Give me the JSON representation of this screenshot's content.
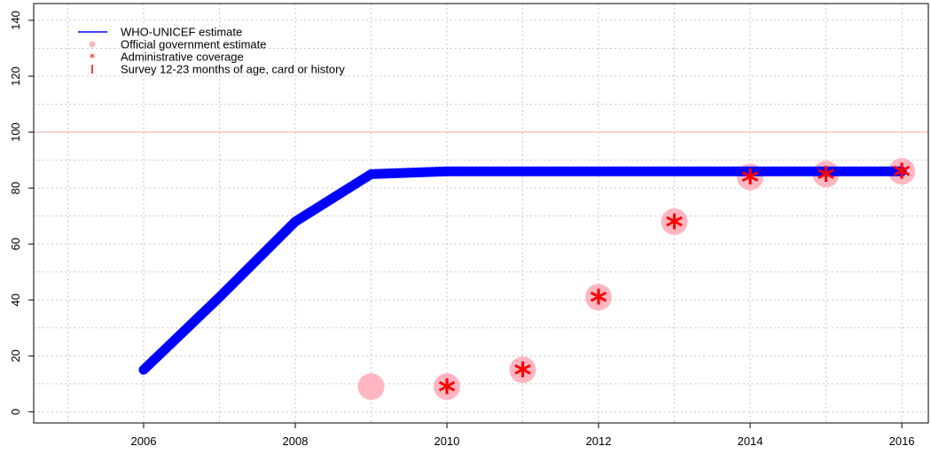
{
  "chart_data": {
    "type": "line",
    "title": "",
    "xlabel": "",
    "ylabel": "",
    "xlim": [
      2004.55,
      2016.35
    ],
    "ylim": [
      -4,
      146
    ],
    "x_ticks": [
      2006,
      2008,
      2010,
      2012,
      2014,
      2016
    ],
    "x_tick_labels": [
      "2006",
      "2008",
      "2010",
      "2012",
      "2014",
      "2016"
    ],
    "y_ticks": [
      0,
      20,
      40,
      60,
      80,
      100,
      120,
      140
    ],
    "y_tick_labels": [
      "0",
      "20",
      "40",
      "60",
      "80",
      "100",
      "120",
      "140"
    ],
    "grid": true,
    "reference_line": {
      "y": 100,
      "color": "#f4a6a6"
    },
    "legend_position": "top-left",
    "legend": [
      {
        "label": "WHO-UNICEF estimate",
        "symbol": "line",
        "color": "#0000ff"
      },
      {
        "label": "Official government estimate",
        "symbol": "dot",
        "color": "#ffb6c1"
      },
      {
        "label": "Administrative coverage",
        "symbol": "asterisk",
        "color": "#ff0000"
      },
      {
        "label": "Survey 12-23 months of age, card or history",
        "symbol": "bar",
        "color": "#ff0000"
      }
    ],
    "series": [
      {
        "name": "WHO-UNICEF estimate",
        "style": "line",
        "color": "#0000ff",
        "x": [
          2006,
          2007,
          2008,
          2009,
          2010,
          2011,
          2012,
          2013,
          2014,
          2015,
          2016
        ],
        "values": [
          15,
          41,
          68,
          85,
          86,
          86,
          86,
          86,
          86,
          86,
          86
        ]
      },
      {
        "name": "Official government estimate",
        "style": "dot",
        "color": "#ffb6c1",
        "x": [
          2009,
          2010,
          2011,
          2012,
          2013,
          2014,
          2015,
          2016
        ],
        "values": [
          9,
          9,
          15,
          41,
          68,
          84,
          85,
          86
        ]
      },
      {
        "name": "Administrative coverage",
        "style": "asterisk",
        "color": "#ff0000",
        "x": [
          2010,
          2011,
          2012,
          2013,
          2014,
          2015,
          2016
        ],
        "values": [
          9,
          15,
          41,
          68,
          84,
          85,
          86
        ]
      }
    ]
  }
}
